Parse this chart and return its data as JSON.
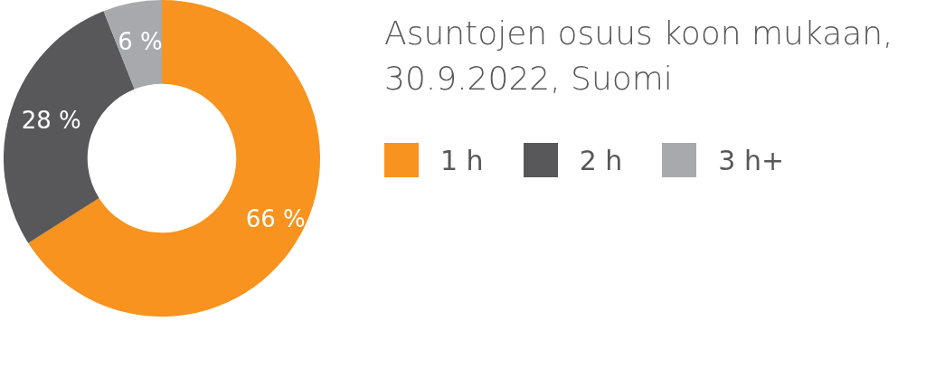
{
  "chart_data": {
    "type": "donut",
    "title": "Asuntojen osuus koon mukaan, 30.9.2022, Suomi",
    "categories": [
      "1 h",
      "2 h",
      "3 h+"
    ],
    "values": [
      66,
      28,
      6
    ],
    "value_labels": [
      "66 %",
      "28 %",
      "6 %"
    ],
    "colors": [
      "#f7931e",
      "#58585a",
      "#a7a9ac"
    ],
    "legend": "right"
  }
}
